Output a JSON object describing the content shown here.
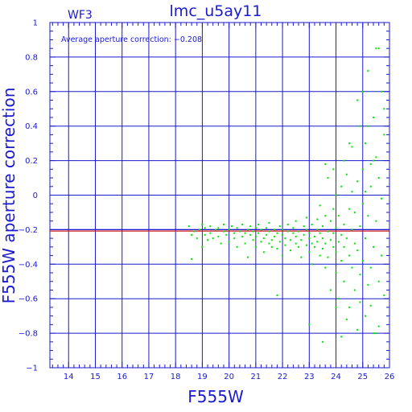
{
  "chart_data": {
    "type": "scatter",
    "title": "lmc_u5ay11",
    "chip_label": "WF3",
    "annotation": "Average aperture correction: −0.208",
    "xlabel": "F555W",
    "ylabel": "F555W aperture correction",
    "xlim": [
      13.3,
      26
    ],
    "ylim": [
      -1,
      1
    ],
    "x_ticks": [
      "14",
      "15",
      "16",
      "17",
      "18",
      "19",
      "20",
      "21",
      "22",
      "23",
      "24",
      "25",
      "26"
    ],
    "y_ticks": [
      "−1",
      "−0.8",
      "−0.6",
      "−0.4",
      "−0.2",
      "0",
      "0.2",
      "0.4",
      "0.6",
      "0.8",
      "1"
    ],
    "grid": true,
    "reference_lines": [
      {
        "y": -0.208,
        "color": "#d01a1a"
      },
      {
        "y": -0.2,
        "color": "#1a1ad0"
      }
    ],
    "colors": {
      "axes": "#1a1ad0",
      "points": "#00e600",
      "average_line": "#d01a1a"
    },
    "points": [
      [
        18.5,
        -0.18
      ],
      [
        18.6,
        -0.23
      ],
      [
        18.6,
        -0.37
      ],
      [
        18.7,
        -0.21
      ],
      [
        18.8,
        -0.25
      ],
      [
        18.9,
        -0.2
      ],
      [
        19.0,
        -0.17
      ],
      [
        19.0,
        -0.3
      ],
      [
        19.1,
        -0.19
      ],
      [
        19.1,
        -0.23
      ],
      [
        19.2,
        -0.26
      ],
      [
        19.3,
        -0.18
      ],
      [
        19.3,
        -0.22
      ],
      [
        19.4,
        -0.25
      ],
      [
        19.5,
        -0.2
      ],
      [
        19.6,
        -0.19
      ],
      [
        19.6,
        -0.24
      ],
      [
        19.7,
        -0.28
      ],
      [
        19.8,
        -0.21
      ],
      [
        19.8,
        -0.17
      ],
      [
        19.9,
        -0.23
      ],
      [
        20.0,
        -0.2
      ],
      [
        20.0,
        -0.27
      ],
      [
        20.1,
        -0.18
      ],
      [
        20.2,
        -0.22
      ],
      [
        20.2,
        -0.25
      ],
      [
        20.3,
        -0.3
      ],
      [
        20.3,
        -0.19
      ],
      [
        20.4,
        -0.21
      ],
      [
        20.5,
        -0.24
      ],
      [
        20.5,
        -0.17
      ],
      [
        20.6,
        -0.22
      ],
      [
        20.6,
        -0.28
      ],
      [
        20.7,
        -0.2
      ],
      [
        20.7,
        -0.36
      ],
      [
        20.8,
        -0.23
      ],
      [
        20.8,
        -0.18
      ],
      [
        20.9,
        -0.26
      ],
      [
        20.9,
        -0.21
      ],
      [
        21.0,
        -0.19
      ],
      [
        21.0,
        -0.24
      ],
      [
        21.0,
        -0.3
      ],
      [
        21.1,
        -0.22
      ],
      [
        21.1,
        -0.17
      ],
      [
        21.2,
        -0.27
      ],
      [
        21.2,
        -0.2
      ],
      [
        21.3,
        -0.25
      ],
      [
        21.3,
        -0.33
      ],
      [
        21.4,
        -0.19
      ],
      [
        21.4,
        -0.23
      ],
      [
        21.5,
        -0.28
      ],
      [
        21.5,
        -0.21
      ],
      [
        21.5,
        -0.16
      ],
      [
        21.6,
        -0.26
      ],
      [
        21.6,
        -0.3
      ],
      [
        21.7,
        -0.2
      ],
      [
        21.7,
        -0.24
      ],
      [
        21.8,
        -0.58
      ],
      [
        21.8,
        -0.22
      ],
      [
        21.8,
        -0.31
      ],
      [
        21.9,
        -0.18
      ],
      [
        21.9,
        -0.27
      ],
      [
        22.0,
        -0.23
      ],
      [
        22.0,
        -0.2
      ],
      [
        22.0,
        -0.35
      ],
      [
        22.1,
        -0.25
      ],
      [
        22.1,
        -0.29
      ],
      [
        22.2,
        -0.21
      ],
      [
        22.2,
        -0.17
      ],
      [
        22.3,
        -0.26
      ],
      [
        22.3,
        -0.32
      ],
      [
        22.4,
        -0.22
      ],
      [
        22.4,
        -0.19
      ],
      [
        22.5,
        -0.28
      ],
      [
        22.5,
        -0.24
      ],
      [
        22.5,
        -0.15
      ],
      [
        22.6,
        -0.3
      ],
      [
        22.6,
        -0.21
      ],
      [
        22.7,
        -0.26
      ],
      [
        22.7,
        -0.36
      ],
      [
        22.8,
        -0.18
      ],
      [
        22.8,
        -0.23
      ],
      [
        22.9,
        -0.29
      ],
      [
        22.9,
        -0.2
      ],
      [
        22.9,
        -0.13
      ],
      [
        23.0,
        -0.25
      ],
      [
        23.0,
        -0.33
      ],
      [
        23.0,
        -0.22
      ],
      [
        23.1,
        -0.28
      ],
      [
        23.1,
        -0.17
      ],
      [
        23.1,
        -0.4
      ],
      [
        23.2,
        -0.24
      ],
      [
        23.2,
        -0.3
      ],
      [
        23.3,
        -0.2
      ],
      [
        23.3,
        -0.14
      ],
      [
        23.3,
        -0.27
      ],
      [
        23.4,
        -0.35
      ],
      [
        23.4,
        -0.22
      ],
      [
        23.4,
        -0.06
      ],
      [
        23.5,
        -0.31
      ],
      [
        23.5,
        -0.18
      ],
      [
        23.5,
        -0.25
      ],
      [
        23.6,
        -0.42
      ],
      [
        23.6,
        -0.12
      ],
      [
        23.6,
        -0.28
      ],
      [
        23.7,
        0.1
      ],
      [
        23.7,
        -0.21
      ],
      [
        23.7,
        -0.36
      ],
      [
        23.8,
        -0.26
      ],
      [
        23.8,
        -0.55
      ],
      [
        23.8,
        -0.15
      ],
      [
        23.9,
        -0.3
      ],
      [
        23.9,
        -0.08
      ],
      [
        23.9,
        -0.22
      ],
      [
        24.0,
        -0.45
      ],
      [
        24.0,
        -0.19
      ],
      [
        24.0,
        -0.33
      ],
      [
        24.0,
        0.0
      ],
      [
        24.1,
        -0.27
      ],
      [
        24.1,
        -0.6
      ],
      [
        24.1,
        -0.12
      ],
      [
        24.2,
        -0.38
      ],
      [
        24.2,
        -0.23
      ],
      [
        24.2,
        0.05
      ],
      [
        24.3,
        -0.3
      ],
      [
        24.3,
        -0.5
      ],
      [
        24.3,
        -0.17
      ],
      [
        24.4,
        -0.72
      ],
      [
        24.4,
        -0.25
      ],
      [
        24.4,
        0.12
      ],
      [
        24.5,
        -0.35
      ],
      [
        24.5,
        -0.08
      ],
      [
        24.5,
        -0.65
      ],
      [
        24.6,
        -0.2
      ],
      [
        24.6,
        -0.42
      ],
      [
        24.6,
        0.02
      ],
      [
        24.7,
        -0.28
      ],
      [
        24.7,
        -0.55
      ],
      [
        24.7,
        -0.1
      ],
      [
        24.8,
        -0.78
      ],
      [
        24.8,
        -0.32
      ],
      [
        24.8,
        0.08
      ],
      [
        24.9,
        -0.46
      ],
      [
        24.9,
        -0.18
      ],
      [
        24.9,
        -0.62
      ],
      [
        25.0,
        0.15
      ],
      [
        25.0,
        -0.38
      ],
      [
        25.0,
        -0.05
      ],
      [
        25.1,
        -0.7
      ],
      [
        25.1,
        -0.25
      ],
      [
        25.1,
        0.3
      ],
      [
        25.2,
        -0.52
      ],
      [
        25.2,
        -0.12
      ],
      [
        25.2,
        0.72
      ],
      [
        25.3,
        -0.42
      ],
      [
        25.3,
        0.05
      ],
      [
        25.3,
        -0.64
      ],
      [
        25.4,
        0.45
      ],
      [
        25.4,
        -0.3
      ],
      [
        25.4,
        -0.8
      ],
      [
        25.5,
        0.22
      ],
      [
        25.5,
        -0.15
      ],
      [
        25.5,
        0.85
      ],
      [
        25.6,
        -0.5
      ],
      [
        25.6,
        0.1
      ],
      [
        25.6,
        -0.76
      ],
      [
        25.7,
        0.6
      ],
      [
        25.7,
        -0.02
      ],
      [
        25.7,
        -0.35
      ],
      [
        25.8,
        0.35
      ],
      [
        25.8,
        -0.58
      ],
      [
        25.8,
        0.5
      ],
      [
        23.0,
        -0.75
      ],
      [
        23.5,
        -0.85
      ],
      [
        24.0,
        -0.65
      ],
      [
        24.2,
        -0.82
      ],
      [
        24.5,
        0.3
      ],
      [
        24.8,
        0.55
      ],
      [
        25.0,
        0.6
      ],
      [
        25.2,
        0.4
      ],
      [
        25.4,
        0.2
      ],
      [
        25.6,
        0.85
      ],
      [
        25.3,
        0.18
      ],
      [
        24.9,
        0.4
      ],
      [
        24.6,
        0.28
      ],
      [
        24.3,
        0.2
      ],
      [
        23.9,
        0.15
      ],
      [
        23.6,
        0.18
      ],
      [
        25.5,
        -0.8
      ],
      [
        25.1,
        0.02
      ]
    ]
  }
}
